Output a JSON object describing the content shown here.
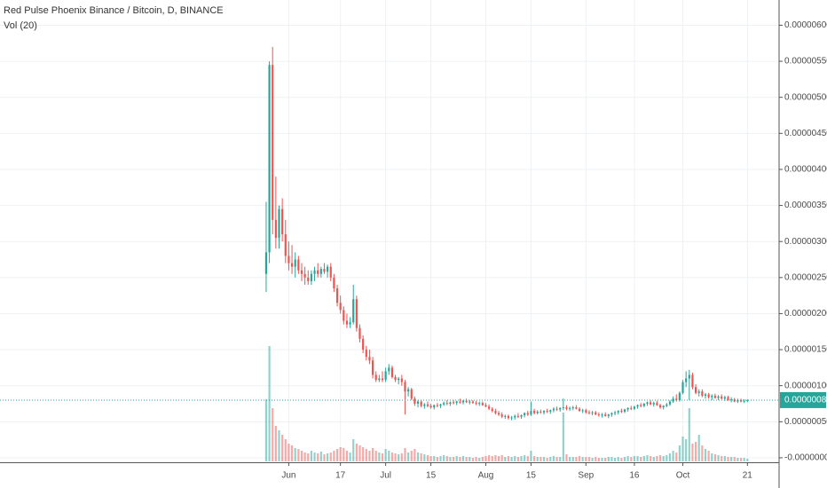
{
  "chart_data": {
    "type": "candlestick",
    "title": "Red Pulse Phoenix Binance / Bitcoin, D, BINANCE",
    "indicator": "Vol (20)",
    "up_color": "#26a69a",
    "down_color": "#ef5350",
    "grid": true,
    "ylim": [
      -5e-08,
      6.35e-06
    ],
    "yticks": [
      {
        "value": 6e-06,
        "label": "0.00000600"
      },
      {
        "value": 5.5e-06,
        "label": "0.00000550"
      },
      {
        "value": 5e-06,
        "label": "0.00000500"
      },
      {
        "value": 4.5e-06,
        "label": "0.00000450"
      },
      {
        "value": 4e-06,
        "label": "0.00000400"
      },
      {
        "value": 3.5e-06,
        "label": "0.00000350"
      },
      {
        "value": 3e-06,
        "label": "0.00000300"
      },
      {
        "value": 2.5e-06,
        "label": "0.00000250"
      },
      {
        "value": 2e-06,
        "label": "0.00000200"
      },
      {
        "value": 1.5e-06,
        "label": "0.00000150"
      },
      {
        "value": 1e-06,
        "label": "0.00000100"
      },
      {
        "value": 5e-07,
        "label": "0.00000050"
      },
      {
        "value": 0,
        "label": "-0.00000000"
      }
    ],
    "xlim": [
      -82.4,
      158.8
    ],
    "xticks": [
      {
        "value": 7,
        "label": "Jun"
      },
      {
        "value": 23,
        "label": "17"
      },
      {
        "value": 37,
        "label": "Jul"
      },
      {
        "value": 51,
        "label": "15"
      },
      {
        "value": 68,
        "label": "Aug"
      },
      {
        "value": 82,
        "label": "15"
      },
      {
        "value": 99,
        "label": "Sep"
      },
      {
        "value": 114,
        "label": "16"
      },
      {
        "value": 129,
        "label": "Oct"
      },
      {
        "value": 149,
        "label": "21"
      }
    ],
    "last_price": {
      "value": 8e-07,
      "label": "0.00000080"
    },
    "ohlc": [
      [
        2.55e-06,
        3.55e-06,
        2.3e-06,
        2.85e-06
      ],
      [
        2.85e-06,
        5.5e-06,
        2.7e-06,
        5.45e-06
      ],
      [
        5.45e-06,
        5.7e-06,
        3.1e-06,
        3.3e-06
      ],
      [
        3.3e-06,
        3.9e-06,
        2.9e-06,
        3.05e-06
      ],
      [
        3.05e-06,
        3.5e-06,
        2.9e-06,
        3.45e-06
      ],
      [
        3.45e-06,
        3.6e-06,
        3e-06,
        3.1e-06
      ],
      [
        3.1e-06,
        3.3e-06,
        2.7e-06,
        2.8e-06
      ],
      [
        2.8e-06,
        3e-06,
        2.6e-06,
        2.7e-06
      ],
      [
        2.7e-06,
        2.95e-06,
        2.55e-06,
        2.65e-06
      ],
      [
        2.65e-06,
        2.85e-06,
        2.5e-06,
        2.75e-06
      ],
      [
        2.75e-06,
        2.8e-06,
        2.55e-06,
        2.6e-06
      ],
      [
        2.6e-06,
        2.7e-06,
        2.45e-06,
        2.55e-06
      ],
      [
        2.55e-06,
        2.65e-06,
        2.4e-06,
        2.5e-06
      ],
      [
        2.5e-06,
        2.6e-06,
        2.4e-06,
        2.45e-06
      ],
      [
        2.45e-06,
        2.6e-06,
        2.4e-06,
        2.55e-06
      ],
      [
        2.55e-06,
        2.65e-06,
        2.45e-06,
        2.6e-06
      ],
      [
        2.6e-06,
        2.7e-06,
        2.5e-06,
        2.55e-06
      ],
      [
        2.55e-06,
        2.65e-06,
        2.5e-06,
        2.62e-06
      ],
      [
        2.62e-06,
        2.7e-06,
        2.55e-06,
        2.58e-06
      ],
      [
        2.58e-06,
        2.68e-06,
        2.5e-06,
        2.65e-06
      ],
      [
        2.65e-06,
        2.7e-06,
        2.45e-06,
        2.5e-06
      ],
      [
        2.5e-06,
        2.55e-06,
        2.3e-06,
        2.35e-06
      ],
      [
        2.35e-06,
        2.4e-06,
        2.1e-06,
        2.15e-06
      ],
      [
        2.15e-06,
        2.25e-06,
        2e-06,
        2.05e-06
      ],
      [
        2.05e-06,
        2.1e-06,
        1.85e-06,
        1.9e-06
      ],
      [
        1.9e-06,
        2e-06,
        1.8e-06,
        1.85e-06
      ],
      [
        1.85e-06,
        1.95e-06,
        1.8e-06,
        1.88e-06
      ],
      [
        1.88e-06,
        2.4e-06,
        1.85e-06,
        2.2e-06
      ],
      [
        2.2e-06,
        2.25e-06,
        1.75e-06,
        1.8e-06
      ],
      [
        1.8e-06,
        1.85e-06,
        1.6e-06,
        1.65e-06
      ],
      [
        1.65e-06,
        1.7e-06,
        1.45e-06,
        1.5e-06
      ],
      [
        1.5e-06,
        1.55e-06,
        1.35e-06,
        1.4e-06
      ],
      [
        1.4e-06,
        1.5e-06,
        1.3e-06,
        1.35e-06
      ],
      [
        1.35e-06,
        1.4e-06,
        1.1e-06,
        1.15e-06
      ],
      [
        1.15e-06,
        1.2e-06,
        1.05e-06,
        1.08e-06
      ],
      [
        1.08e-06,
        1.15e-06,
        1.05e-06,
        1.1e-06
      ],
      [
        1.1e-06,
        1.2e-06,
        1.05e-06,
        1.08e-06
      ],
      [
        1.08e-06,
        1.25e-06,
        1.05e-06,
        1.2e-06
      ],
      [
        1.2e-06,
        1.3e-06,
        1.15e-06,
        1.25e-06
      ],
      [
        1.25e-06,
        1.28e-06,
        1.1e-06,
        1.12e-06
      ],
      [
        1.12e-06,
        1.15e-06,
        1.05e-06,
        1.08e-06
      ],
      [
        1.08e-06,
        1.12e-06,
        1.02e-06,
        1.1e-06
      ],
      [
        1.1e-06,
        1.15e-06,
        1e-06,
        1.05e-06
      ],
      [
        1.05e-06,
        1.08e-06,
        6e-07,
        9.2e-07
      ],
      [
        9.2e-07,
        9.8e-07,
        8.5e-07,
        9.5e-07
      ],
      [
        9.5e-07,
        9.7e-07,
        8e-07,
        8.2e-07
      ],
      [
        8.2e-07,
        8.5e-07,
        7.2e-07,
        7.5e-07
      ],
      [
        7.5e-07,
        8e-07,
        7e-07,
        7.8e-07
      ],
      [
        7.8e-07,
        8e-07,
        7e-07,
        7.2e-07
      ],
      [
        7.2e-07,
        7.6e-07,
        6.8e-07,
        7.4e-07
      ],
      [
        7.4e-07,
        7.8e-07,
        7e-07,
        7.2e-07
      ],
      [
        7.2e-07,
        7.5e-07,
        6.8e-07,
        7e-07
      ],
      [
        7e-07,
        7.4e-07,
        6.7e-07,
        7.3e-07
      ],
      [
        7.3e-07,
        7.6e-07,
        7e-07,
        7.2e-07
      ],
      [
        7.2e-07,
        7.5e-07,
        6.9e-07,
        7.4e-07
      ],
      [
        7.4e-07,
        7.8e-07,
        7.2e-07,
        7.6e-07
      ],
      [
        7.6e-07,
        8e-07,
        7.3e-07,
        7.5e-07
      ],
      [
        7.5e-07,
        7.8e-07,
        7.2e-07,
        7.7e-07
      ],
      [
        7.7e-07,
        8e-07,
        7.4e-07,
        7.6e-07
      ],
      [
        7.6e-07,
        7.9e-07,
        7.3e-07,
        7.8e-07
      ],
      [
        7.8e-07,
        8.2e-07,
        7.5e-07,
        7.7e-07
      ],
      [
        7.7e-07,
        8e-07,
        7.4e-07,
        7.9e-07
      ],
      [
        7.9e-07,
        8.2e-07,
        7.6e-07,
        7.7e-07
      ],
      [
        7.7e-07,
        8e-07,
        7.4e-07,
        7.8e-07
      ],
      [
        7.8e-07,
        8e-07,
        7.5e-07,
        7.6e-07
      ],
      [
        7.6e-07,
        7.9e-07,
        7.3e-07,
        7.5e-07
      ],
      [
        7.5e-07,
        7.8e-07,
        7.2e-07,
        7.6e-07
      ],
      [
        7.6e-07,
        7.8e-07,
        7.2e-07,
        7.3e-07
      ],
      [
        7.3e-07,
        7.6e-07,
        7e-07,
        7.1e-07
      ],
      [
        7.1e-07,
        7.4e-07,
        6.6e-07,
        6.8e-07
      ],
      [
        6.8e-07,
        7e-07,
        6.3e-07,
        6.5e-07
      ],
      [
        6.5e-07,
        6.8e-07,
        6e-07,
        6.2e-07
      ],
      [
        6.2e-07,
        6.5e-07,
        5.8e-07,
        6e-07
      ],
      [
        6e-07,
        6.3e-07,
        5.5e-07,
        5.7e-07
      ],
      [
        5.7e-07,
        6e-07,
        5.4e-07,
        5.8e-07
      ],
      [
        5.8e-07,
        6e-07,
        5.3e-07,
        5.5e-07
      ],
      [
        5.5e-07,
        5.8e-07,
        5.2e-07,
        5.6e-07
      ],
      [
        5.6e-07,
        6e-07,
        5.3e-07,
        5.8e-07
      ],
      [
        5.8e-07,
        6.2e-07,
        5.5e-07,
        5.7e-07
      ],
      [
        5.7e-07,
        6e-07,
        5.4e-07,
        5.9e-07
      ],
      [
        5.9e-07,
        6.3e-07,
        5.6e-07,
        6.2e-07
      ],
      [
        6.2e-07,
        6.5e-07,
        5.8e-07,
        6e-07
      ],
      [
        6e-07,
        7.8e-07,
        5.8e-07,
        6.5e-07
      ],
      [
        6.5e-07,
        6.8e-07,
        6e-07,
        6.2e-07
      ],
      [
        6.2e-07,
        6.6e-07,
        6e-07,
        6.4e-07
      ],
      [
        6.4e-07,
        6.7e-07,
        6.1e-07,
        6.3e-07
      ],
      [
        6.3e-07,
        6.6e-07,
        6e-07,
        6.5e-07
      ],
      [
        6.5e-07,
        6.8e-07,
        6.2e-07,
        6.4e-07
      ],
      [
        6.4e-07,
        6.7e-07,
        6.1e-07,
        6.6e-07
      ],
      [
        6.6e-07,
        7e-07,
        6.3e-07,
        6.8e-07
      ],
      [
        6.8e-07,
        7.1e-07,
        6.5e-07,
        6.7e-07
      ],
      [
        6.7e-07,
        7e-07,
        6.4e-07,
        6.9e-07
      ],
      [
        6.9e-07,
        8.2e-07,
        6.6e-07,
        7e-07
      ],
      [
        7e-07,
        7.3e-07,
        6.6e-07,
        6.8e-07
      ],
      [
        6.8e-07,
        7.1e-07,
        6.5e-07,
        6.9e-07
      ],
      [
        6.9e-07,
        7.2e-07,
        6.6e-07,
        7e-07
      ],
      [
        7e-07,
        7.3e-07,
        6.7e-07,
        6.8e-07
      ],
      [
        6.8e-07,
        7e-07,
        6.4e-07,
        6.5e-07
      ],
      [
        6.5e-07,
        6.8e-07,
        6.2e-07,
        6.6e-07
      ],
      [
        6.6e-07,
        6.8e-07,
        6.1e-07,
        6.3e-07
      ],
      [
        6.3e-07,
        6.6e-07,
        6e-07,
        6.2e-07
      ],
      [
        6.2e-07,
        6.5e-07,
        5.9e-07,
        6.3e-07
      ],
      [
        6.3e-07,
        6.5e-07,
        5.9e-07,
        6e-07
      ],
      [
        6e-07,
        6.3e-07,
        5.7e-07,
        5.9e-07
      ],
      [
        5.9e-07,
        6.2e-07,
        5.6e-07,
        6e-07
      ],
      [
        6e-07,
        6.3e-07,
        5.7e-07,
        5.8e-07
      ],
      [
        5.8e-07,
        6.1e-07,
        5.5e-07,
        6e-07
      ],
      [
        6e-07,
        6.3e-07,
        5.7e-07,
        6.2e-07
      ],
      [
        6.2e-07,
        6.5e-07,
        5.9e-07,
        6.3e-07
      ],
      [
        6.3e-07,
        6.6e-07,
        6e-07,
        6.5e-07
      ],
      [
        6.5e-07,
        6.8e-07,
        6.2e-07,
        6.4e-07
      ],
      [
        6.4e-07,
        6.8e-07,
        6.2e-07,
        6.7e-07
      ],
      [
        6.7e-07,
        7e-07,
        6.4e-07,
        6.9e-07
      ],
      [
        6.9e-07,
        7.2e-07,
        6.6e-07,
        6.8e-07
      ],
      [
        6.8e-07,
        7.2e-07,
        6.6e-07,
        7.1e-07
      ],
      [
        7.1e-07,
        7.4e-07,
        6.8e-07,
        7.3e-07
      ],
      [
        7.3e-07,
        7.6e-07,
        7e-07,
        7.2e-07
      ],
      [
        7.2e-07,
        7.6e-07,
        7e-07,
        7.5e-07
      ],
      [
        7.5e-07,
        7.8e-07,
        7.2e-07,
        7.7e-07
      ],
      [
        7.7e-07,
        8e-07,
        7.3e-07,
        7.4e-07
      ],
      [
        7.4e-07,
        7.8e-07,
        7.1e-07,
        7.6e-07
      ],
      [
        7.6e-07,
        7.9e-07,
        7.2e-07,
        7.3e-07
      ],
      [
        7.3e-07,
        7.5e-07,
        6.8e-07,
        7e-07
      ],
      [
        7e-07,
        7.3e-07,
        6.7e-07,
        7.2e-07
      ],
      [
        7.2e-07,
        7.6e-07,
        7e-07,
        7.4e-07
      ],
      [
        7.4e-07,
        8e-07,
        7.2e-07,
        7.8e-07
      ],
      [
        7.8e-07,
        8.5e-07,
        7.6e-07,
        8.2e-07
      ],
      [
        8.2e-07,
        8.8e-07,
        7.8e-07,
        8e-07
      ],
      [
        8e-07,
        9.2e-07,
        7.8e-07,
        9e-07
      ],
      [
        9e-07,
        1.08e-06,
        8.8e-07,
        1.05e-06
      ],
      [
        1.05e-06,
        1.2e-06,
        9.8e-07,
        1.1e-06
      ],
      [
        1.1e-06,
        1.22e-06,
        8e-07,
        1.15e-06
      ],
      [
        1.15e-06,
        1.18e-06,
        9.5e-07,
        9.8e-07
      ],
      [
        9.8e-07,
        1.02e-06,
        8.8e-07,
        9e-07
      ],
      [
        9e-07,
        9.5e-07,
        8.5e-07,
        9.2e-07
      ],
      [
        9.2e-07,
        9.5e-07,
        8.4e-07,
        8.6e-07
      ],
      [
        8.6e-07,
        9e-07,
        8.2e-07,
        8.8e-07
      ],
      [
        8.8e-07,
        9e-07,
        8.2e-07,
        8.4e-07
      ],
      [
        8.4e-07,
        8.8e-07,
        8e-07,
        8.6e-07
      ],
      [
        8.6e-07,
        8.9e-07,
        8.2e-07,
        8.3e-07
      ],
      [
        8.3e-07,
        8.7e-07,
        8e-07,
        8.5e-07
      ],
      [
        8.5e-07,
        8.8e-07,
        8.1e-07,
        8.2e-07
      ],
      [
        8.2e-07,
        8.6e-07,
        7.9e-07,
        8.4e-07
      ],
      [
        8.4e-07,
        8.6e-07,
        7.9e-07,
        8e-07
      ],
      [
        8e-07,
        8.4e-07,
        7.7e-07,
        8.1e-07
      ],
      [
        8.1e-07,
        8.3e-07,
        7.7e-07,
        7.8e-07
      ],
      [
        7.8e-07,
        8.2e-07,
        7.6e-07,
        8e-07
      ],
      [
        8e-07,
        8.2e-07,
        7.7e-07,
        7.8e-07
      ],
      [
        7.8e-07,
        8.1e-07,
        7.6e-07,
        7.9e-07
      ],
      [
        7.9e-07,
        8.1e-07,
        7.7e-07,
        8e-07
      ]
    ],
    "volume": [
      70,
      130,
      60,
      40,
      35,
      30,
      25,
      20,
      18,
      15,
      14,
      12,
      10,
      9,
      12,
      10,
      9,
      11,
      8,
      9,
      10,
      12,
      14,
      16,
      15,
      12,
      10,
      25,
      20,
      18,
      16,
      14,
      12,
      15,
      12,
      10,
      9,
      14,
      12,
      10,
      9,
      8,
      9,
      15,
      10,
      12,
      14,
      10,
      9,
      8,
      7,
      6,
      6,
      5,
      6,
      7,
      6,
      5,
      5,
      6,
      5,
      6,
      5,
      5,
      4,
      5,
      4,
      5,
      6,
      7,
      6,
      7,
      6,
      7,
      5,
      6,
      5,
      6,
      5,
      6,
      7,
      6,
      12,
      6,
      5,
      5,
      5,
      4,
      5,
      6,
      5,
      5,
      55,
      8,
      5,
      5,
      5,
      6,
      5,
      5,
      5,
      4,
      5,
      4,
      4,
      4,
      5,
      5,
      4,
      5,
      4,
      5,
      6,
      5,
      6,
      6,
      5,
      6,
      7,
      6,
      5,
      6,
      7,
      6,
      7,
      9,
      12,
      10,
      18,
      28,
      25,
      60,
      20,
      22,
      30,
      18,
      14,
      12,
      9,
      8,
      7,
      6,
      6,
      5,
      5,
      5,
      4,
      4,
      4,
      3
    ]
  }
}
